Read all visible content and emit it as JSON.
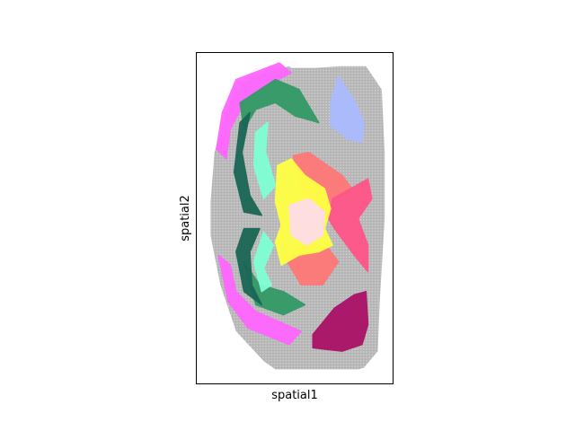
{
  "chart_data": {
    "type": "scatter",
    "xlabel": "spatial1",
    "ylabel": "spatial2",
    "x_ticks": [],
    "y_ticks": [],
    "y_inverted": true,
    "grid": false,
    "legend": "none",
    "background_spot_color": "#b3b3b3",
    "regions": [
      {
        "color": "#ff66ff",
        "polygons": [
          [
            [
              0.2,
              0.08
            ],
            [
              0.42,
              0.03
            ],
            [
              0.48,
              0.06
            ],
            [
              0.26,
              0.13
            ],
            [
              0.17,
              0.23
            ],
            [
              0.15,
              0.32
            ],
            [
              0.1,
              0.29
            ],
            [
              0.13,
              0.18
            ]
          ],
          [
            [
              0.11,
              0.61
            ],
            [
              0.17,
              0.64
            ],
            [
              0.2,
              0.72
            ],
            [
              0.3,
              0.78
            ],
            [
              0.53,
              0.84
            ],
            [
              0.47,
              0.88
            ],
            [
              0.26,
              0.83
            ],
            [
              0.16,
              0.75
            ]
          ]
        ]
      },
      {
        "color": "#339966",
        "polygons": [
          [
            [
              0.22,
              0.15
            ],
            [
              0.4,
              0.08
            ],
            [
              0.52,
              0.11
            ],
            [
              0.62,
              0.21
            ],
            [
              0.5,
              0.19
            ],
            [
              0.4,
              0.15
            ],
            [
              0.3,
              0.17
            ],
            [
              0.24,
              0.23
            ]
          ],
          [
            [
              0.24,
              0.63
            ],
            [
              0.32,
              0.7
            ],
            [
              0.44,
              0.72
            ],
            [
              0.55,
              0.76
            ],
            [
              0.44,
              0.79
            ],
            [
              0.3,
              0.76
            ]
          ]
        ]
      },
      {
        "color": "#1a6655",
        "polygons": [
          [
            [
              0.22,
              0.21
            ],
            [
              0.27,
              0.18
            ],
            [
              0.23,
              0.3
            ],
            [
              0.27,
              0.43
            ],
            [
              0.33,
              0.49
            ],
            [
              0.24,
              0.48
            ],
            [
              0.19,
              0.36
            ]
          ],
          [
            [
              0.24,
              0.53
            ],
            [
              0.32,
              0.53
            ],
            [
              0.27,
              0.6
            ],
            [
              0.28,
              0.7
            ],
            [
              0.33,
              0.76
            ],
            [
              0.24,
              0.72
            ],
            [
              0.2,
              0.6
            ]
          ]
        ]
      },
      {
        "color": "#7fffd4",
        "polygons": [
          [
            [
              0.3,
              0.24
            ],
            [
              0.36,
              0.21
            ],
            [
              0.35,
              0.3
            ],
            [
              0.4,
              0.4
            ],
            [
              0.34,
              0.44
            ],
            [
              0.29,
              0.34
            ]
          ],
          [
            [
              0.34,
              0.54
            ],
            [
              0.39,
              0.58
            ],
            [
              0.34,
              0.65
            ],
            [
              0.38,
              0.7
            ],
            [
              0.33,
              0.72
            ],
            [
              0.29,
              0.63
            ]
          ]
        ]
      },
      {
        "color": "#aabbff",
        "polygons": [
          [
            [
              0.68,
              0.15
            ],
            [
              0.72,
              0.07
            ],
            [
              0.8,
              0.14
            ],
            [
              0.85,
              0.21
            ],
            [
              0.84,
              0.27
            ],
            [
              0.77,
              0.26
            ],
            [
              0.68,
              0.22
            ]
          ],
          [
            [
              0.7,
              0.77
            ],
            [
              0.77,
              0.74
            ],
            [
              0.8,
              0.77
            ],
            [
              0.74,
              0.82
            ]
          ]
        ]
      },
      {
        "color": "#ff7777",
        "polygons": [
          [
            [
              0.49,
              0.31
            ],
            [
              0.57,
              0.3
            ],
            [
              0.74,
              0.37
            ],
            [
              0.79,
              0.41
            ],
            [
              0.7,
              0.44
            ],
            [
              0.67,
              0.5
            ],
            [
              0.61,
              0.51
            ],
            [
              0.55,
              0.43
            ]
          ],
          [
            [
              0.45,
              0.62
            ],
            [
              0.57,
              0.57
            ],
            [
              0.67,
              0.59
            ],
            [
              0.72,
              0.63
            ],
            [
              0.64,
              0.7
            ],
            [
              0.53,
              0.7
            ]
          ]
        ]
      },
      {
        "color": "#ff5588",
        "polygons": [
          [
            [
              0.69,
              0.44
            ],
            [
              0.87,
              0.38
            ],
            [
              0.89,
              0.44
            ],
            [
              0.82,
              0.5
            ],
            [
              0.87,
              0.58
            ],
            [
              0.87,
              0.66
            ],
            [
              0.8,
              0.61
            ],
            [
              0.7,
              0.53
            ],
            [
              0.67,
              0.5
            ]
          ]
        ]
      },
      {
        "color": "#ffff44",
        "polygons": [
          [
            [
              0.41,
              0.34
            ],
            [
              0.48,
              0.32
            ],
            [
              0.55,
              0.37
            ],
            [
              0.65,
              0.41
            ],
            [
              0.68,
              0.47
            ],
            [
              0.65,
              0.53
            ],
            [
              0.69,
              0.58
            ],
            [
              0.62,
              0.6
            ],
            [
              0.52,
              0.61
            ],
            [
              0.43,
              0.64
            ],
            [
              0.4,
              0.57
            ],
            [
              0.43,
              0.52
            ],
            [
              0.4,
              0.45
            ]
          ]
        ]
      },
      {
        "color": "#ffdde8",
        "polygons": [
          [
            [
              0.47,
              0.46
            ],
            [
              0.57,
              0.44
            ],
            [
              0.65,
              0.48
            ],
            [
              0.64,
              0.55
            ],
            [
              0.56,
              0.58
            ],
            [
              0.48,
              0.55
            ]
          ]
        ]
      },
      {
        "color": "#aa1166",
        "polygons": [
          [
            [
              0.59,
              0.85
            ],
            [
              0.7,
              0.77
            ],
            [
              0.8,
              0.73
            ],
            [
              0.86,
              0.72
            ],
            [
              0.87,
              0.82
            ],
            [
              0.84,
              0.88
            ],
            [
              0.74,
              0.9
            ],
            [
              0.59,
              0.89
            ]
          ]
        ]
      }
    ]
  }
}
